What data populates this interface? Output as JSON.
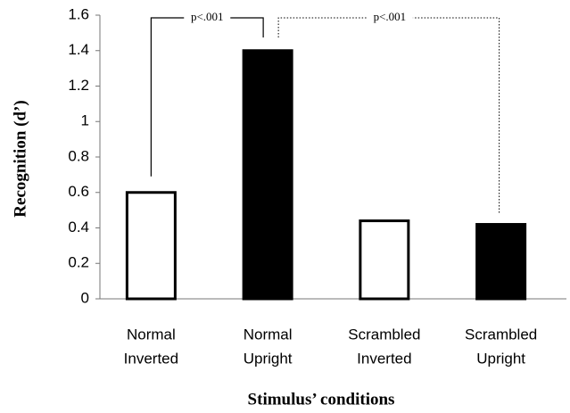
{
  "chart_data": {
    "type": "bar",
    "categories": [
      [
        "Normal",
        "Inverted"
      ],
      [
        "Normal",
        "Upright"
      ],
      [
        "Scrambled",
        "Inverted"
      ],
      [
        "Scrambled",
        "Upright"
      ]
    ],
    "values": [
      0.6,
      1.4,
      0.44,
      0.42
    ],
    "colors": [
      "#ffffff",
      "#000000",
      "#ffffff",
      "#000000"
    ],
    "ylim": [
      0,
      1.6
    ],
    "yticks": [
      0,
      0.2,
      0.4,
      0.6,
      0.8,
      1,
      1.2,
      1.4,
      1.6
    ],
    "y_label": "Recognition (d’)",
    "x_label": "Stimulus’ conditions",
    "annotations": [
      "p<.001",
      "p<.001"
    ]
  }
}
